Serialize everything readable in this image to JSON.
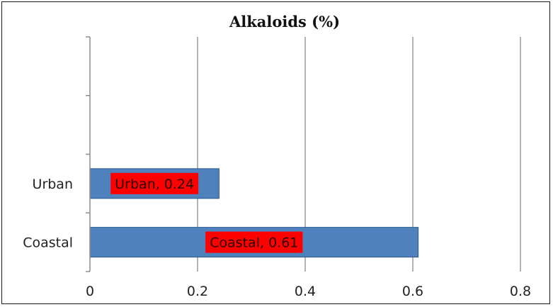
{
  "chart_data": {
    "type": "bar",
    "orientation": "horizontal",
    "title": "Alkaloids (%)",
    "categories": [
      "Urban",
      "Coastal"
    ],
    "values": [
      0.24,
      0.61
    ],
    "data_labels": [
      "Urban, 0.24",
      "Coastal, 0.61"
    ],
    "xlabel": "",
    "ylabel": "",
    "xlim": [
      0,
      0.8
    ],
    "x_ticks": [
      "0",
      "0.2",
      "0.4",
      "0.6",
      "0.8"
    ],
    "grid": "vertical",
    "legend": "none",
    "colors": {
      "bar": "#4f81bd",
      "bar_edge": "#2c5a8f",
      "label_box": "#ff0000",
      "gridline": "#9a9a9a",
      "axis": "#8c8c8c"
    }
  }
}
